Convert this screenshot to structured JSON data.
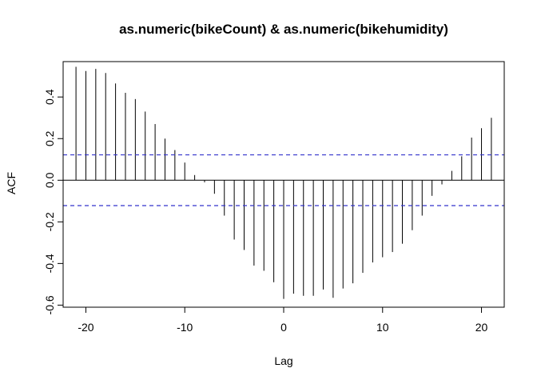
{
  "chart_data": {
    "type": "bar",
    "title": "as.numeric(bikeCount) & as.numeric(bikehumidity)",
    "xlabel": "Lag",
    "ylabel": "ACF",
    "xlim": [
      -22.3,
      22.3
    ],
    "ylim": [
      -0.61,
      0.57
    ],
    "x_ticks": [
      -20,
      -10,
      0,
      10,
      20
    ],
    "x_tick_labels": [
      "-20",
      "-10",
      "0",
      "10",
      "20"
    ],
    "y_ticks": [
      -0.6,
      -0.4,
      -0.2,
      0.0,
      0.2,
      0.4
    ],
    "y_tick_labels": [
      "-0.6",
      "-0.4",
      "-0.2",
      "0.0",
      "0.2",
      "0.4"
    ],
    "confidence_bound": 0.122,
    "colors": {
      "bars": "#000000",
      "bounds": "#3333cc",
      "zero_line": "#000000"
    },
    "x": [
      -21,
      -20,
      -19,
      -18,
      -17,
      -16,
      -15,
      -14,
      -13,
      -12,
      -11,
      -10,
      -9,
      -8,
      -7,
      -6,
      -5,
      -4,
      -3,
      -2,
      -1,
      0,
      1,
      2,
      3,
      4,
      5,
      6,
      7,
      8,
      9,
      10,
      11,
      12,
      13,
      14,
      15,
      16,
      17,
      18,
      19,
      20,
      21
    ],
    "values": [
      0.545,
      0.525,
      0.535,
      0.515,
      0.465,
      0.42,
      0.39,
      0.33,
      0.27,
      0.2,
      0.145,
      0.085,
      0.025,
      -0.01,
      -0.065,
      -0.17,
      -0.285,
      -0.335,
      -0.41,
      -0.435,
      -0.49,
      -0.57,
      -0.545,
      -0.555,
      -0.555,
      -0.525,
      -0.565,
      -0.52,
      -0.495,
      -0.445,
      -0.395,
      -0.37,
      -0.345,
      -0.305,
      -0.24,
      -0.17,
      -0.075,
      -0.02,
      0.045,
      0.115,
      0.205,
      0.25,
      0.3
    ]
  }
}
